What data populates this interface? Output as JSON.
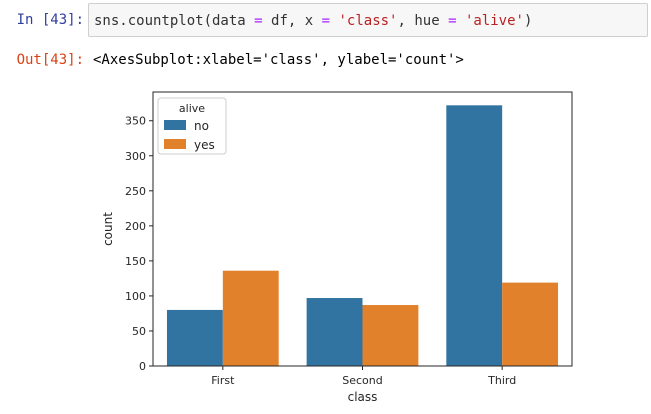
{
  "in_cell": {
    "prompt": "In [43]:",
    "code_tokens": [
      {
        "t": "sns.countplot(data ",
        "c": "plain"
      },
      {
        "t": "=",
        "c": "op"
      },
      {
        "t": " df, x ",
        "c": "plain"
      },
      {
        "t": "=",
        "c": "op"
      },
      {
        "t": " ",
        "c": "plain"
      },
      {
        "t": "'class'",
        "c": "str"
      },
      {
        "t": ", hue ",
        "c": "plain"
      },
      {
        "t": "=",
        "c": "op"
      },
      {
        "t": " ",
        "c": "plain"
      },
      {
        "t": "'alive'",
        "c": "str"
      },
      {
        "t": ")",
        "c": "plain"
      }
    ]
  },
  "out_cell": {
    "prompt": "Out[43]:",
    "text": "<AxesSubplot:xlabel='class', ylabel='count'>"
  },
  "chart_data": {
    "type": "bar",
    "categories": [
      "First",
      "Second",
      "Third"
    ],
    "series": [
      {
        "name": "no",
        "values": [
          80,
          97,
          372
        ],
        "color": "#3274a1"
      },
      {
        "name": "yes",
        "values": [
          136,
          87,
          119
        ],
        "color": "#e1812c"
      }
    ],
    "xlabel": "class",
    "ylabel": "count",
    "ylim": [
      0,
      391
    ],
    "yticks": [
      0,
      50,
      100,
      150,
      200,
      250,
      300,
      350
    ],
    "legend": {
      "title": "alive",
      "placement": "top-left"
    },
    "grid": false
  }
}
